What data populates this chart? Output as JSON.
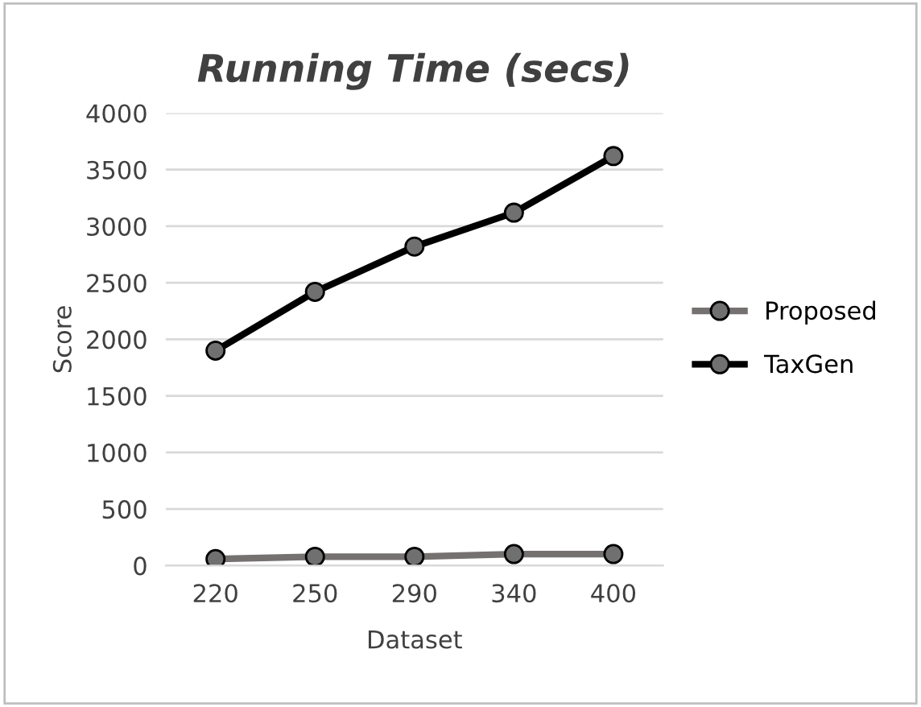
{
  "chart_data": {
    "type": "line",
    "title": "Running Time (secs)",
    "xlabel": "Dataset",
    "ylabel": "Score",
    "categories": [
      "220",
      "250",
      "290",
      "340",
      "400"
    ],
    "series": [
      {
        "name": "Proposed",
        "color": "#767171",
        "values": [
          58,
          78,
          78,
          102,
          102
        ]
      },
      {
        "name": "TaxGen",
        "color": "#000000",
        "values": [
          1900,
          2420,
          2820,
          3120,
          3620
        ]
      }
    ],
    "ylim": [
      0,
      4000
    ],
    "yticks": [
      0,
      500,
      1000,
      1500,
      2000,
      2500,
      3000,
      3500,
      4000
    ],
    "grid": "y",
    "legend": "right",
    "marker": "circle",
    "line_style": "solid"
  }
}
